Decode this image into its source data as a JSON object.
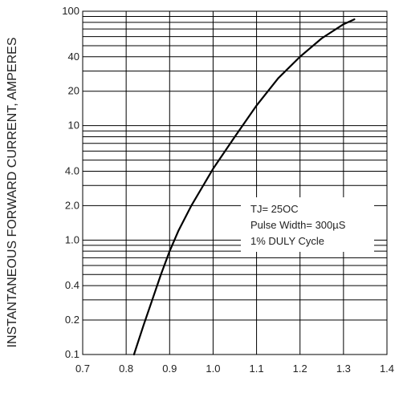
{
  "chart_data": {
    "type": "line",
    "xlabel": "",
    "ylabel": "INSTANTANEOUS FORWARD CURRENT, AMPERES",
    "x_ticks": [
      "0.7",
      "0.8",
      "0.9",
      "1.0",
      "1.1",
      "1.2",
      "1.3",
      "1.4"
    ],
    "y_ticks": [
      "0.1",
      "0.2",
      "0.4",
      "1.0",
      "2.0",
      "4.0",
      "10",
      "20",
      "40",
      "100"
    ],
    "xlim": [
      0.7,
      1.4
    ],
    "ylim": [
      0.1,
      100
    ],
    "yscale": "log",
    "grid": true,
    "annotations": [
      "TJ= 25OC",
      "Pulse Width= 300µS",
      "1% DULY Cycle"
    ],
    "series": [
      {
        "x": [
          0.818,
          0.84,
          0.86,
          0.88,
          0.9,
          0.92,
          0.95,
          1.0,
          1.05,
          1.1,
          1.15,
          1.2,
          1.25,
          1.3,
          1.325
        ],
        "y": [
          0.1,
          0.18,
          0.3,
          0.5,
          0.8,
          1.2,
          2.0,
          4.2,
          8.0,
          15.0,
          26.0,
          40.0,
          58.0,
          77.0,
          85.0
        ]
      }
    ]
  }
}
